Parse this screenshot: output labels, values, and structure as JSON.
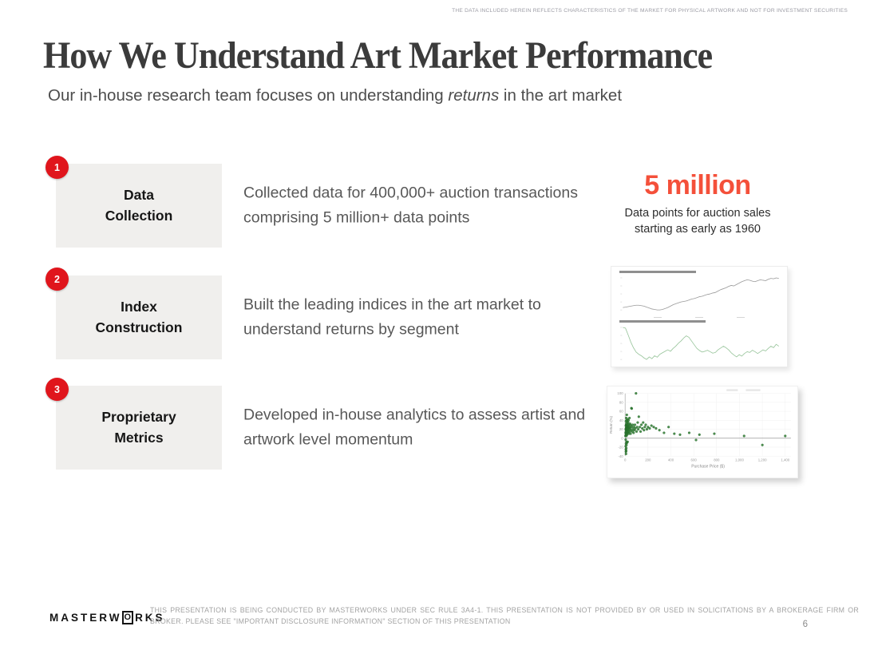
{
  "page": {
    "top_disclaimer": "THE DATA INCLUDED HEREIN REFLECTS CHARACTERISTICS OF THE MARKET FOR PHYSICAL ARTWORK AND NOT FOR INVESTMENT SECURITIES",
    "page_number": "6"
  },
  "header": {
    "title": "How We Understand Art Market Performance",
    "subtitle_prefix": "Our in-house research team focuses on understanding ",
    "subtitle_italic": "returns",
    "subtitle_suffix": " in the art market"
  },
  "rows": [
    {
      "number": "1",
      "title_lines": [
        "Data",
        "Collection"
      ],
      "description": "Collected data for 400,000+ auction transactions comprising 5 million+ data points"
    },
    {
      "number": "2",
      "title_lines": [
        "Index",
        "Construction"
      ],
      "description": "Built the leading indices in the art market to understand returns by segment"
    },
    {
      "number": "3",
      "title_lines": [
        "Proprietary",
        "Metrics"
      ],
      "description": "Developed in-house analytics to assess artist and artwork level momentum"
    }
  ],
  "highlight": {
    "stat": "5 million",
    "caption": "Data points for auction sales starting as early as 1960"
  },
  "footer": {
    "logo_prefix": "MASTERW",
    "logo_o": "O",
    "logo_suffix": "RKS",
    "disclaimer": "THIS PRESENTATION IS BEING CONDUCTED BY MASTERWORKS UNDER SEC RULE 3A4-1. THIS PRESENTATION IS NOT PROVIDED BY OR USED IN SOLICITATIONS BY A BROKERAGE FIRM OR BROKER. PLEASE SEE \"IMPORTANT DISCLOSURE INFORMATION\" SECTION OF THIS PRESENTATION"
  },
  "colors": {
    "badge_red": "#e0151c",
    "stat_red": "#f4503a",
    "box_gray": "#f0efed",
    "line_top": "#9a9a9a",
    "line_bottom": "#97c49a",
    "scatter_green": "#2f7d32",
    "scatter_green_edge": "#1b5e20"
  },
  "chart_data": [
    {
      "type": "line",
      "panel": "top",
      "values": [
        30,
        31,
        32,
        33,
        34,
        35,
        35,
        34,
        33,
        31,
        29,
        27,
        26,
        25,
        25,
        26,
        28,
        30,
        33,
        36,
        38,
        40,
        42,
        43,
        44,
        46,
        48,
        49,
        51,
        53,
        54,
        56,
        58,
        59,
        61,
        62,
        65,
        68,
        70,
        72,
        75,
        77,
        76,
        79,
        82,
        85,
        87,
        89,
        88,
        86,
        85,
        87,
        89,
        88,
        87,
        90,
        92,
        91,
        93,
        92
      ]
    },
    {
      "type": "line",
      "panel": "bottom",
      "values": [
        95,
        93,
        75,
        55,
        40,
        28,
        22,
        18,
        12,
        8,
        15,
        10,
        18,
        14,
        22,
        26,
        30,
        34,
        30,
        38,
        44,
        52,
        58,
        66,
        72,
        68,
        58,
        48,
        38,
        32,
        28,
        30,
        33,
        29,
        25,
        27,
        34,
        39,
        44,
        40,
        34,
        26,
        20,
        15,
        21,
        17,
        24,
        29,
        27,
        33,
        29,
        24,
        29,
        34,
        31,
        38,
        44,
        40,
        49,
        44
      ]
    },
    {
      "type": "scatter",
      "xlabel": "Purchase Price ($)",
      "ylabel": "Return (%)",
      "xlim": [
        0,
        1450
      ],
      "ylim": [
        -40,
        100
      ],
      "x_tick_values": [
        0,
        200,
        400,
        600,
        800,
        1000,
        1200,
        1400
      ],
      "x_tick_labels": [
        "0",
        "200",
        "400",
        "600",
        "800",
        "1,000",
        "1,200",
        "1,400"
      ],
      "y_tick_values": [
        100,
        80,
        60,
        40,
        20,
        0,
        -20,
        -40
      ],
      "points": [
        [
          3,
          5
        ],
        [
          4,
          12
        ],
        [
          5,
          20
        ],
        [
          5,
          -3
        ],
        [
          5,
          -18
        ],
        [
          6,
          28
        ],
        [
          6,
          8
        ],
        [
          6,
          -25
        ],
        [
          7,
          15
        ],
        [
          7,
          38
        ],
        [
          7,
          -30
        ],
        [
          8,
          22
        ],
        [
          8,
          -12
        ],
        [
          8,
          -35
        ],
        [
          9,
          10
        ],
        [
          9,
          30
        ],
        [
          9,
          -28
        ],
        [
          10,
          18
        ],
        [
          10,
          45
        ],
        [
          10,
          -22
        ],
        [
          11,
          25
        ],
        [
          11,
          5
        ],
        [
          12,
          33
        ],
        [
          12,
          14
        ],
        [
          12,
          -15
        ],
        [
          13,
          22
        ],
        [
          13,
          -8
        ],
        [
          14,
          40
        ],
        [
          14,
          10
        ],
        [
          15,
          27
        ],
        [
          15,
          52
        ],
        [
          16,
          18
        ],
        [
          16,
          -10
        ],
        [
          17,
          30
        ],
        [
          17,
          8
        ],
        [
          18,
          22
        ],
        [
          19,
          36
        ],
        [
          20,
          14
        ],
        [
          20,
          28
        ],
        [
          21,
          20
        ],
        [
          22,
          42
        ],
        [
          22,
          -8
        ],
        [
          23,
          25
        ],
        [
          24,
          12
        ],
        [
          25,
          30
        ],
        [
          26,
          18
        ],
        [
          27,
          35
        ],
        [
          28,
          22
        ],
        [
          30,
          15
        ],
        [
          30,
          40
        ],
        [
          32,
          25
        ],
        [
          33,
          10
        ],
        [
          35,
          30
        ],
        [
          36,
          20
        ],
        [
          38,
          45
        ],
        [
          40,
          25
        ],
        [
          42,
          15
        ],
        [
          44,
          32
        ],
        [
          46,
          22
        ],
        [
          48,
          10
        ],
        [
          50,
          28
        ],
        [
          52,
          18
        ],
        [
          55,
          67
        ],
        [
          58,
          66
        ],
        [
          60,
          25
        ],
        [
          63,
          15
        ],
        [
          66,
          30
        ],
        [
          70,
          20
        ],
        [
          74,
          12
        ],
        [
          78,
          25
        ],
        [
          82,
          18
        ],
        [
          86,
          30
        ],
        [
          90,
          22
        ],
        [
          95,
          100
        ],
        [
          100,
          15
        ],
        [
          105,
          25
        ],
        [
          110,
          35
        ],
        [
          115,
          20
        ],
        [
          120,
          48
        ],
        [
          128,
          25
        ],
        [
          135,
          15
        ],
        [
          142,
          30
        ],
        [
          150,
          22
        ],
        [
          158,
          35
        ],
        [
          165,
          18
        ],
        [
          172,
          25
        ],
        [
          180,
          30
        ],
        [
          190,
          20
        ],
        [
          200,
          25
        ],
        [
          215,
          22
        ],
        [
          230,
          28
        ],
        [
          250,
          25
        ],
        [
          270,
          22
        ],
        [
          300,
          18
        ],
        [
          340,
          12
        ],
        [
          380,
          25
        ],
        [
          430,
          10
        ],
        [
          480,
          8
        ],
        [
          560,
          12
        ],
        [
          620,
          -4
        ],
        [
          650,
          8
        ],
        [
          780,
          10
        ],
        [
          1040,
          5
        ],
        [
          1200,
          -15
        ],
        [
          1400,
          5
        ]
      ]
    }
  ]
}
